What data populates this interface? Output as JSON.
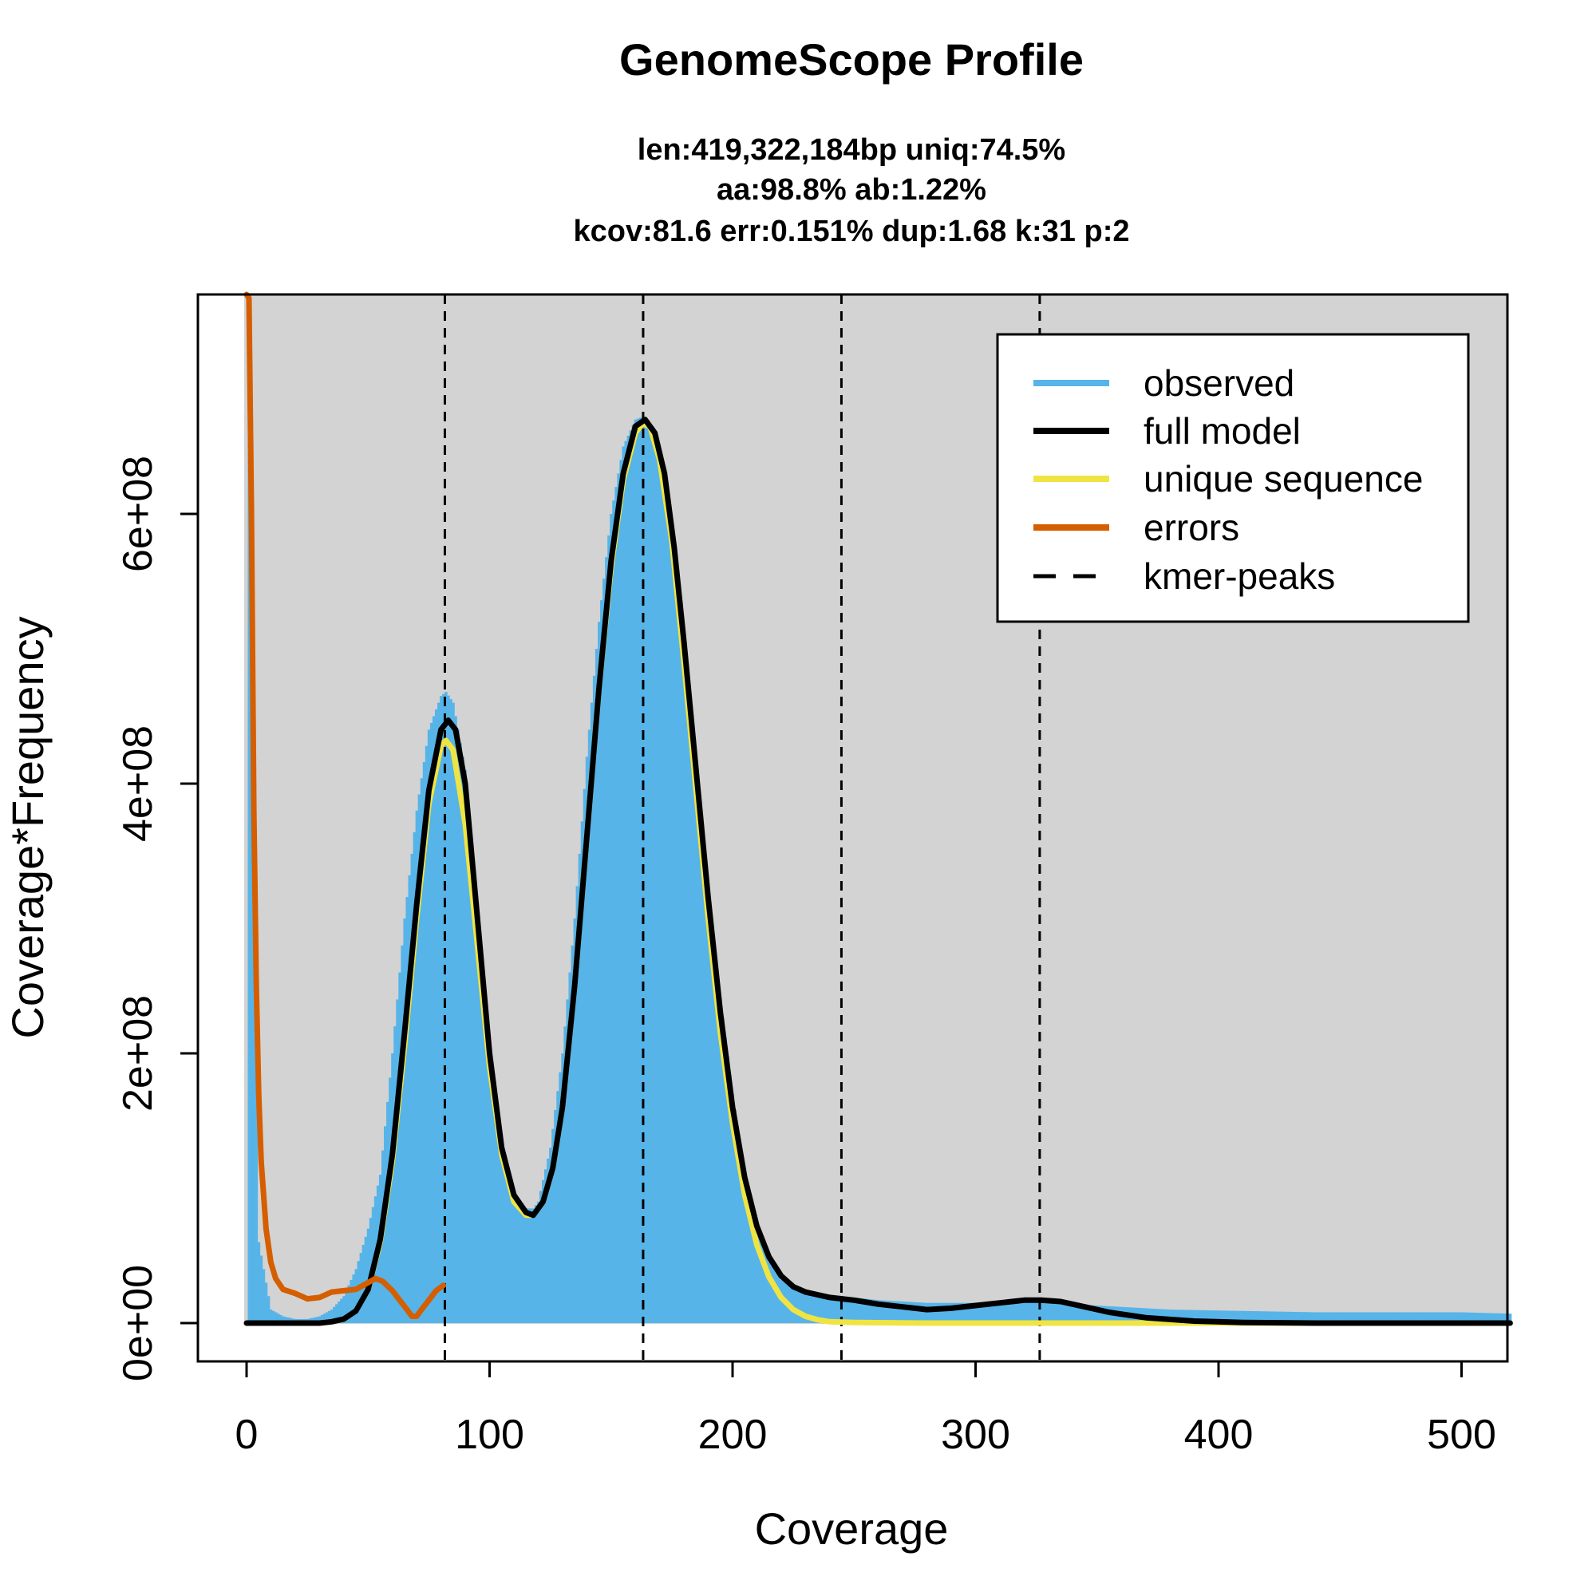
{
  "title": "GenomeScope Profile",
  "subtitle_lines": [
    "len:419,322,184bp uniq:74.5%",
    "aa:98.8% ab:1.22%",
    "kcov:81.6 err:0.151%  dup:1.68  k:31 p:2"
  ],
  "colors": {
    "observed": "#56B4E9",
    "full_model": "#000000",
    "unique_sequence": "#F0E442",
    "errors": "#D55E00",
    "kmer_peaks": "#000000",
    "plot_background": "#D3D3D3"
  },
  "chart_data": {
    "type": "area",
    "title": "GenomeScope Profile",
    "xlabel": "Coverage",
    "ylabel": "Coverage*Frequency",
    "xlim": [
      0,
      520
    ],
    "ylim": [
      0,
      770000000
    ],
    "x_ticks": [
      0,
      100,
      200,
      300,
      400,
      500
    ],
    "x_tick_labels": [
      "0",
      "100",
      "200",
      "300",
      "400",
      "500"
    ],
    "y_ticks": [
      0,
      200000000,
      400000000,
      600000000
    ],
    "y_tick_labels": [
      "0e+00",
      "2e+08",
      "4e+08",
      "6e+08"
    ],
    "grid": false,
    "legend_position": "top-right",
    "legend": [
      {
        "label": "observed",
        "style": "solid",
        "color": "#56B4E9"
      },
      {
        "label": "full model",
        "style": "solid",
        "color": "#000000"
      },
      {
        "label": "unique sequence",
        "style": "solid",
        "color": "#F0E442"
      },
      {
        "label": "errors",
        "style": "solid",
        "color": "#D55E00"
      },
      {
        "label": "kmer-peaks",
        "style": "dashed",
        "color": "#000000"
      }
    ],
    "kmer_peaks": [
      81.6,
      163.2,
      244.8,
      326.4
    ],
    "series": [
      {
        "name": "observed",
        "type": "histogram",
        "x": [
          1,
          5,
          10,
          15,
          20,
          25,
          30,
          35,
          40,
          45,
          50,
          55,
          60,
          65,
          70,
          75,
          80,
          82,
          85,
          90,
          95,
          100,
          105,
          110,
          115,
          118,
          120,
          125,
          130,
          135,
          140,
          145,
          150,
          155,
          160,
          163,
          165,
          170,
          175,
          180,
          185,
          190,
          195,
          200,
          205,
          210,
          215,
          220,
          225,
          230,
          240,
          250,
          260,
          280,
          300,
          320,
          330,
          350,
          380,
          410,
          440,
          470,
          500,
          520
        ],
        "y": [
          770000000,
          60000000,
          10000000,
          5000000,
          3000000,
          3000000,
          5000000,
          10000000,
          20000000,
          40000000,
          70000000,
          110000000,
          200000000,
          300000000,
          380000000,
          440000000,
          465000000,
          468000000,
          460000000,
          410000000,
          300000000,
          190000000,
          120000000,
          95000000,
          85000000,
          85000000,
          90000000,
          130000000,
          200000000,
          300000000,
          420000000,
          520000000,
          600000000,
          650000000,
          670000000,
          672000000,
          670000000,
          640000000,
          580000000,
          500000000,
          410000000,
          320000000,
          240000000,
          170000000,
          110000000,
          70000000,
          45000000,
          32000000,
          26000000,
          22000000,
          20000000,
          19000000,
          17000000,
          15000000,
          15000000,
          16000000,
          15000000,
          13000000,
          10000000,
          9000000,
          8000000,
          8000000,
          8000000,
          7000000
        ]
      },
      {
        "name": "unique sequence",
        "type": "line",
        "x": [
          0,
          20,
          30,
          35,
          40,
          45,
          50,
          55,
          60,
          65,
          70,
          75,
          80,
          82,
          85,
          90,
          95,
          100,
          105,
          110,
          115,
          118,
          122,
          126,
          130,
          135,
          140,
          145,
          150,
          155,
          160,
          163,
          166,
          170,
          175,
          180,
          185,
          190,
          195,
          200,
          205,
          210,
          215,
          220,
          225,
          230,
          235,
          240,
          250,
          280,
          350,
          400,
          520
        ],
        "y": [
          0,
          0,
          0,
          1000000,
          3000000,
          9000000,
          25000000,
          60000000,
          120000000,
          205000000,
          300000000,
          385000000,
          428000000,
          432000000,
          425000000,
          370000000,
          280000000,
          190000000,
          125000000,
          90000000,
          80000000,
          80000000,
          90000000,
          115000000,
          160000000,
          250000000,
          360000000,
          470000000,
          560000000,
          625000000,
          660000000,
          667000000,
          665000000,
          640000000,
          580000000,
          490000000,
          395000000,
          300000000,
          215000000,
          148000000,
          95000000,
          58000000,
          34000000,
          19000000,
          10000000,
          5000000,
          2500000,
          1000000,
          500000,
          0,
          0,
          0,
          0
        ]
      },
      {
        "name": "full model",
        "type": "line",
        "x": [
          0,
          20,
          30,
          35,
          40,
          45,
          50,
          55,
          60,
          65,
          70,
          75,
          80,
          83,
          86,
          90,
          95,
          100,
          105,
          110,
          115,
          118,
          122,
          126,
          130,
          135,
          140,
          145,
          150,
          155,
          160,
          164,
          168,
          172,
          176,
          180,
          185,
          190,
          195,
          200,
          205,
          210,
          215,
          220,
          225,
          230,
          235,
          240,
          250,
          260,
          270,
          280,
          290,
          300,
          310,
          320,
          327,
          335,
          345,
          355,
          370,
          390,
          410,
          440,
          480,
          520
        ],
        "y": [
          0,
          0,
          0,
          1000000,
          3000000,
          9000000,
          25000000,
          62000000,
          125000000,
          215000000,
          310000000,
          395000000,
          440000000,
          447000000,
          440000000,
          400000000,
          300000000,
          200000000,
          130000000,
          95000000,
          82000000,
          80000000,
          90000000,
          115000000,
          160000000,
          250000000,
          360000000,
          470000000,
          565000000,
          630000000,
          665000000,
          670000000,
          660000000,
          630000000,
          575000000,
          505000000,
          410000000,
          315000000,
          230000000,
          160000000,
          108000000,
          72000000,
          49000000,
          35000000,
          27000000,
          23000000,
          21000000,
          19000000,
          17000000,
          14000000,
          12000000,
          10000000,
          11000000,
          13000000,
          15000000,
          17000000,
          17000000,
          16000000,
          12000000,
          8000000,
          4000000,
          1500000,
          500000,
          0,
          0,
          0
        ]
      },
      {
        "name": "errors",
        "type": "line",
        "x": [
          0,
          1,
          2,
          3,
          4,
          5,
          6,
          8,
          10,
          12,
          15,
          20,
          25,
          30,
          35,
          40,
          45,
          50,
          53,
          56,
          60,
          63,
          66,
          68,
          70,
          72,
          75,
          78,
          81
        ],
        "y": [
          770000000,
          760000000,
          600000000,
          380000000,
          250000000,
          170000000,
          120000000,
          70000000,
          45000000,
          33000000,
          25000000,
          22000000,
          18000000,
          19000000,
          23000000,
          24000000,
          25000000,
          30000000,
          33000000,
          31000000,
          24000000,
          17000000,
          10000000,
          5000000,
          5000000,
          10000000,
          17000000,
          24000000,
          28000000
        ]
      }
    ]
  }
}
